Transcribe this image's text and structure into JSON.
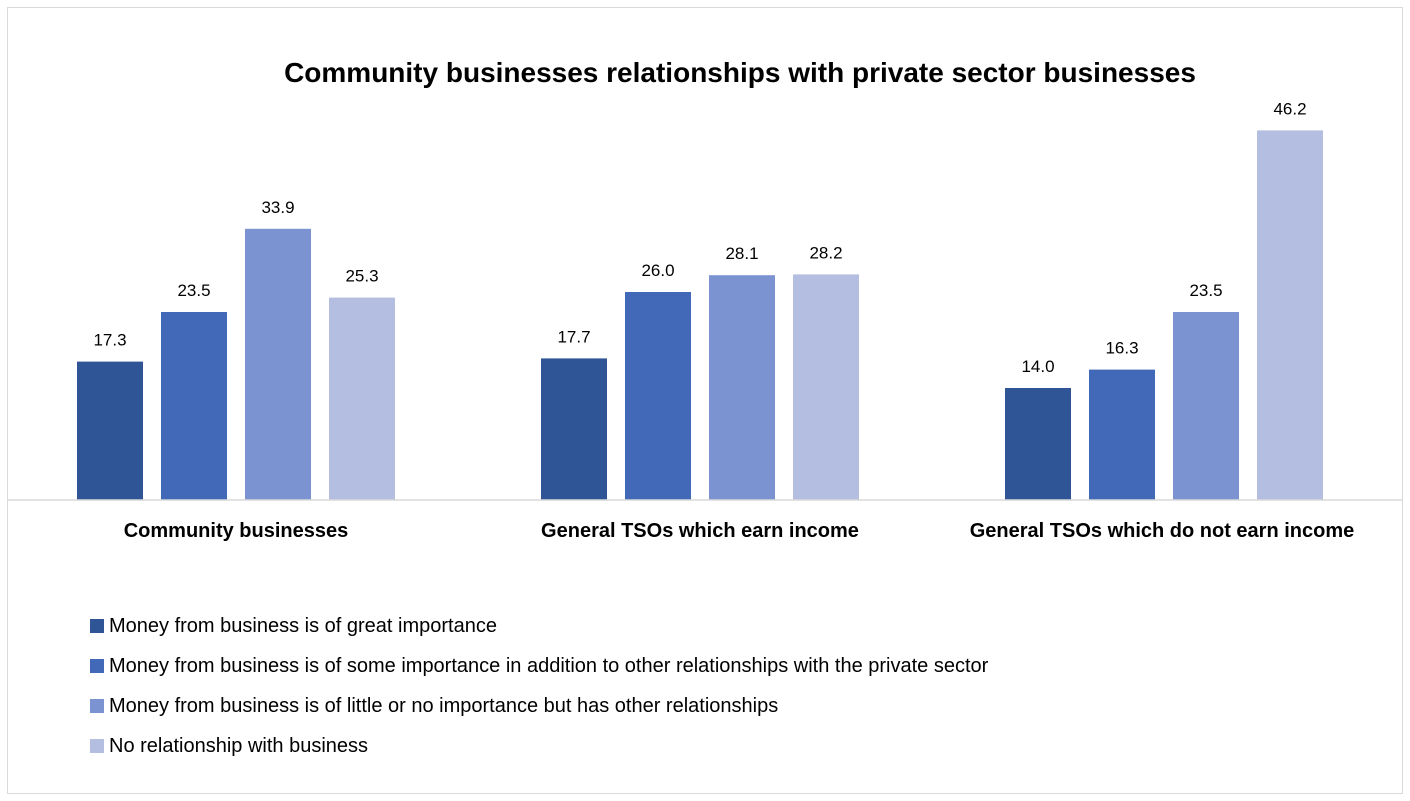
{
  "chart_data": {
    "type": "bar",
    "title": "Community businesses relationships with private sector businesses",
    "xlabel": "",
    "ylabel": "",
    "categories": [
      "Community businesses",
      "General TSOs which earn income",
      "General TSOs which do not earn income"
    ],
    "series": [
      {
        "name": "Money from business is of great importance",
        "color": "#2f5597",
        "values": [
          17.3,
          17.7,
          14.0
        ],
        "labels": [
          "17.3",
          "17.7",
          "14.0"
        ]
      },
      {
        "name": "Money from business is of some importance in addition to other relationships with the private sector",
        "color": "#4169b8",
        "values": [
          23.5,
          26.0,
          16.3
        ],
        "labels": [
          "23.5",
          "26.0",
          "16.3"
        ]
      },
      {
        "name": "Money from business is of little or no importance but has other relationships",
        "color": "#7b93d0",
        "values": [
          33.9,
          28.1,
          23.5
        ],
        "labels": [
          "33.9",
          "28.1",
          "23.5"
        ]
      },
      {
        "name": "No relationship with business",
        "color": "#b3bee0",
        "values": [
          25.3,
          28.2,
          46.2
        ],
        "labels": [
          "25.3",
          "28.2",
          "46.2"
        ]
      }
    ],
    "ylim": [
      0,
      50
    ],
    "grid": false,
    "y_axis_visible": false,
    "data_labels": true,
    "legend_position": "bottom-left"
  }
}
